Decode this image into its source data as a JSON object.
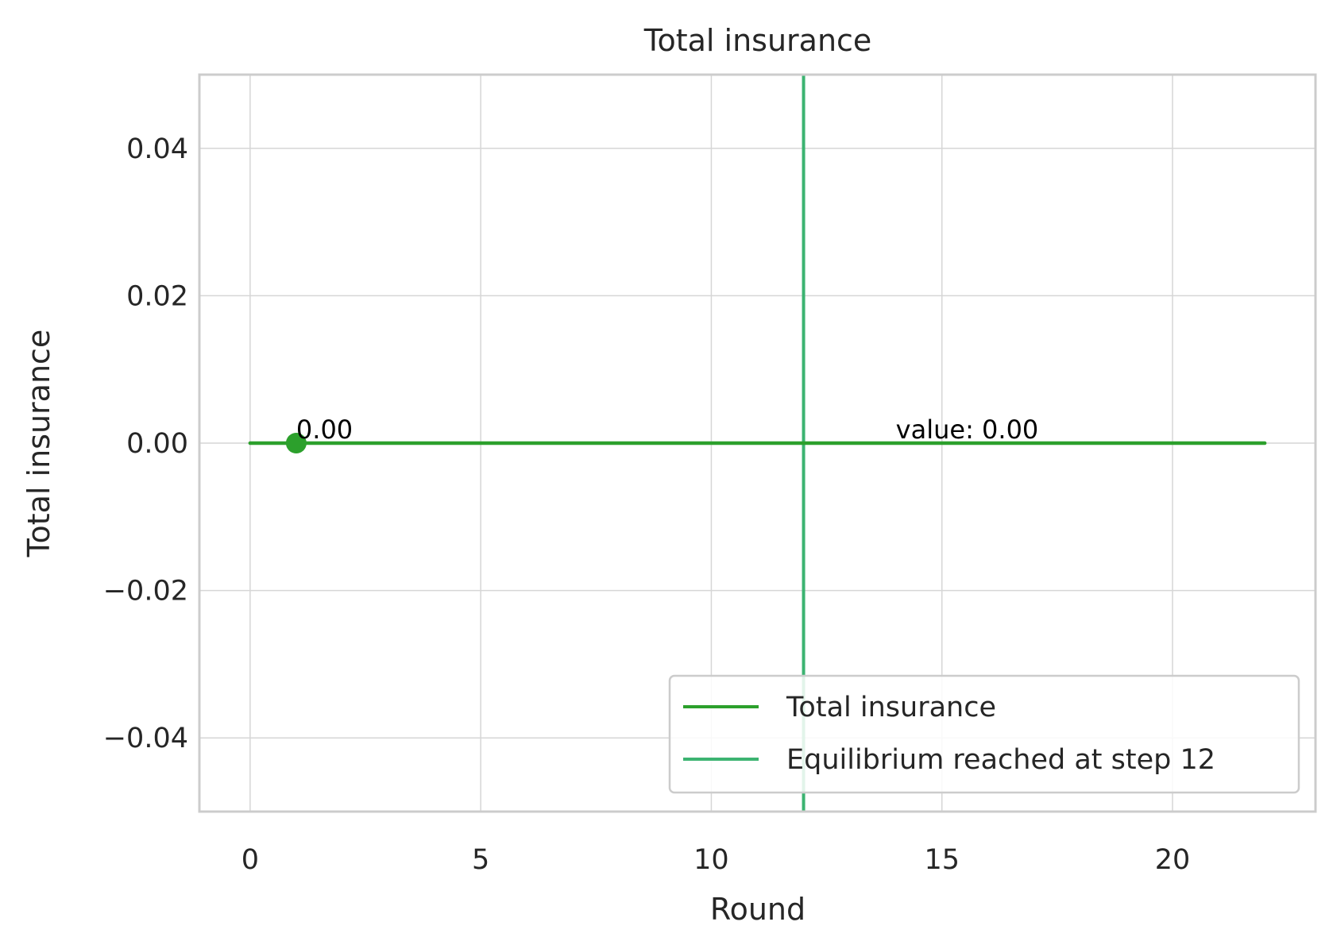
{
  "chart_data": {
    "type": "line",
    "title": "Total insurance",
    "xlabel": "Round",
    "ylabel": "Total insurance",
    "xlim": [
      -1.1,
      23.1
    ],
    "ylim": [
      -0.05,
      0.05
    ],
    "x_ticks": [
      0,
      5,
      10,
      15,
      20
    ],
    "x_tick_labels": [
      "0",
      "5",
      "10",
      "15",
      "20"
    ],
    "y_ticks": [
      0.04,
      0.02,
      0.0,
      -0.02,
      -0.04
    ],
    "y_tick_labels": [
      "0.04",
      "0.02",
      "0.00",
      "−0.02",
      "−0.04"
    ],
    "grid": true,
    "legend_position": "lower-right",
    "series": [
      {
        "name": "Total insurance",
        "color": "#2ca02c",
        "x": [
          0,
          1,
          2,
          3,
          4,
          5,
          6,
          7,
          8,
          9,
          10,
          11,
          12,
          13,
          14,
          15,
          16,
          17,
          18,
          19,
          20,
          21,
          22
        ],
        "y": [
          0,
          0,
          0,
          0,
          0,
          0,
          0,
          0,
          0,
          0,
          0,
          0,
          0,
          0,
          0,
          0,
          0,
          0,
          0,
          0,
          0,
          0,
          0
        ]
      }
    ],
    "marker": {
      "x": 1,
      "y": 0.0,
      "color": "#2ca02c"
    },
    "vline": {
      "name": "Equilibrium reached at step 12",
      "x": 12,
      "color": "#3cb371"
    },
    "annotations": [
      {
        "x": 1,
        "y": 0.0,
        "text": "0.00"
      },
      {
        "x": 14,
        "y": 0.0,
        "text": "value: 0.00"
      }
    ]
  }
}
